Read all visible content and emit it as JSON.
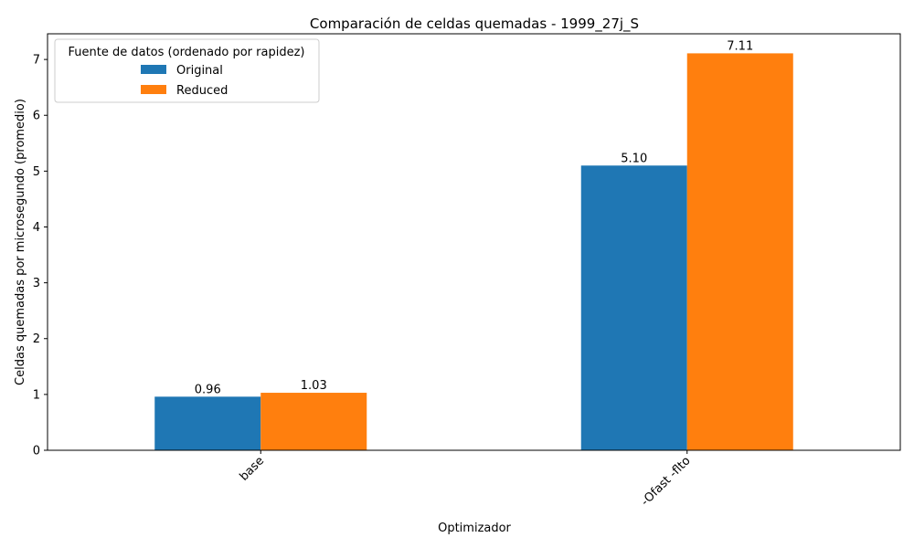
{
  "chart_data": {
    "type": "bar",
    "title": "Comparación de celdas quemadas - 1999_27j_S",
    "xlabel": "Optimizador",
    "ylabel": "Celdas quemadas por microsegundo (promedio)",
    "categories": [
      "base",
      "-Ofast -flto"
    ],
    "series": [
      {
        "name": "Original",
        "values": [
          0.96,
          5.1
        ],
        "labels": [
          "0.96",
          "5.10"
        ],
        "color": "#1f77b4"
      },
      {
        "name": "Reduced",
        "values": [
          1.03,
          7.11
        ],
        "labels": [
          "1.03",
          "7.11"
        ],
        "color": "#ff7f0e"
      }
    ],
    "ylim": [
      0,
      7.46
    ],
    "yticks": [
      0,
      1,
      2,
      3,
      4,
      5,
      6,
      7
    ],
    "legend": {
      "title": "Fuente de datos (ordenado por rapidez)",
      "position": "top-left"
    },
    "grid": false
  }
}
